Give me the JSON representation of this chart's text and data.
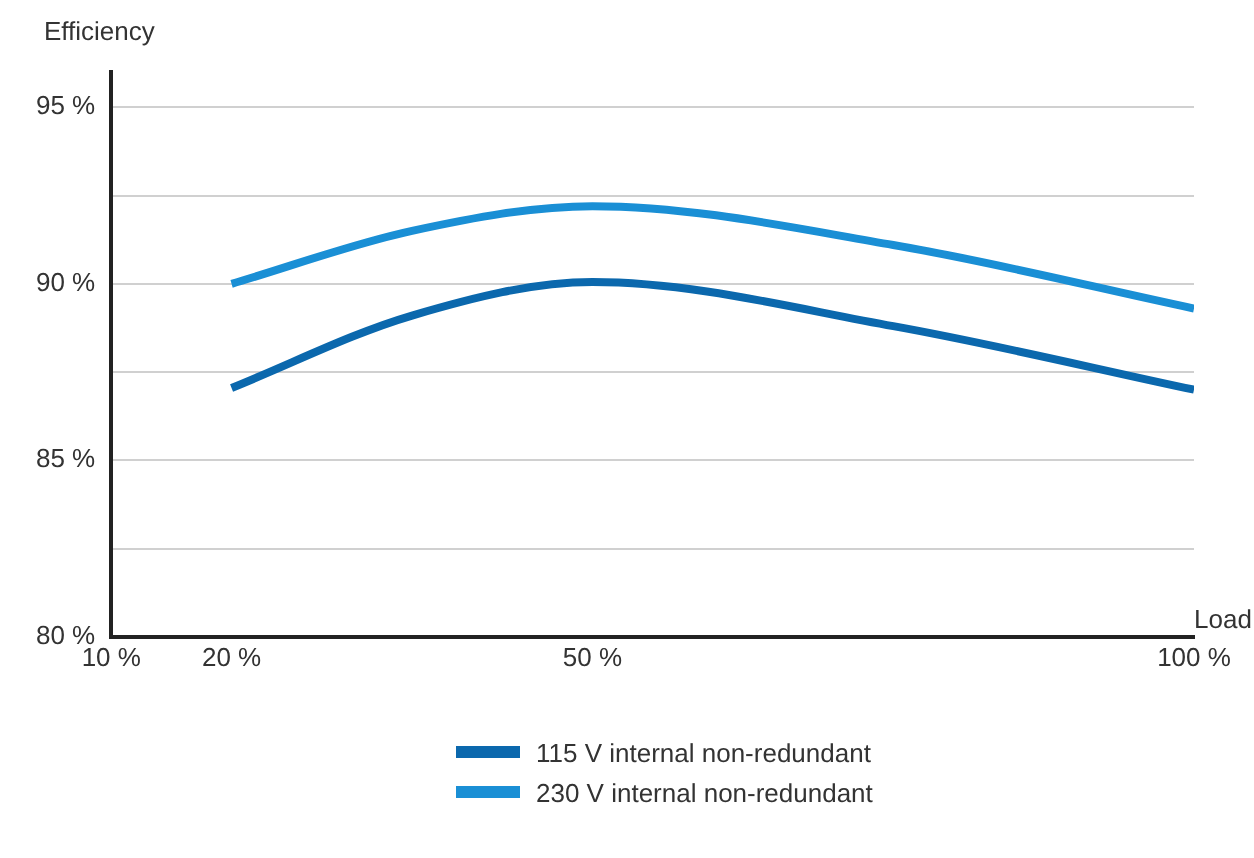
{
  "chart_data": {
    "type": "line",
    "xlabel": "Load",
    "ylabel": "Efficiency",
    "x": [
      20,
      35,
      50,
      75,
      100
    ],
    "series": [
      {
        "name": "115 V internal non-redundant",
        "color": "#0b68ad",
        "values": [
          87.05,
          89.1,
          90.05,
          88.8,
          87.0
        ]
      },
      {
        "name": "230 V internal non-redundant",
        "color": "#1a8fd5",
        "values": [
          90.0,
          91.5,
          92.2,
          91.1,
          89.3
        ]
      }
    ],
    "xlim": [
      10,
      100
    ],
    "xticks": [
      {
        "value": 10,
        "label": "10 %"
      },
      {
        "value": 20,
        "label": "20 %"
      },
      {
        "value": 50,
        "label": "50 %"
      },
      {
        "value": 100,
        "label": "100 %"
      }
    ],
    "ylim": [
      80,
      96
    ],
    "yticks": [
      {
        "value": 80,
        "label": "80 %"
      },
      {
        "value": 82.5,
        "label": null
      },
      {
        "value": 85,
        "label": "85 %"
      },
      {
        "value": 87.5,
        "label": null
      },
      {
        "value": 90,
        "label": "90 %"
      },
      {
        "value": 92.5,
        "label": null
      },
      {
        "value": 95,
        "label": "95 %"
      }
    ],
    "grid": "y",
    "legend": "bottom",
    "marker": "none",
    "line_style": "solid"
  }
}
